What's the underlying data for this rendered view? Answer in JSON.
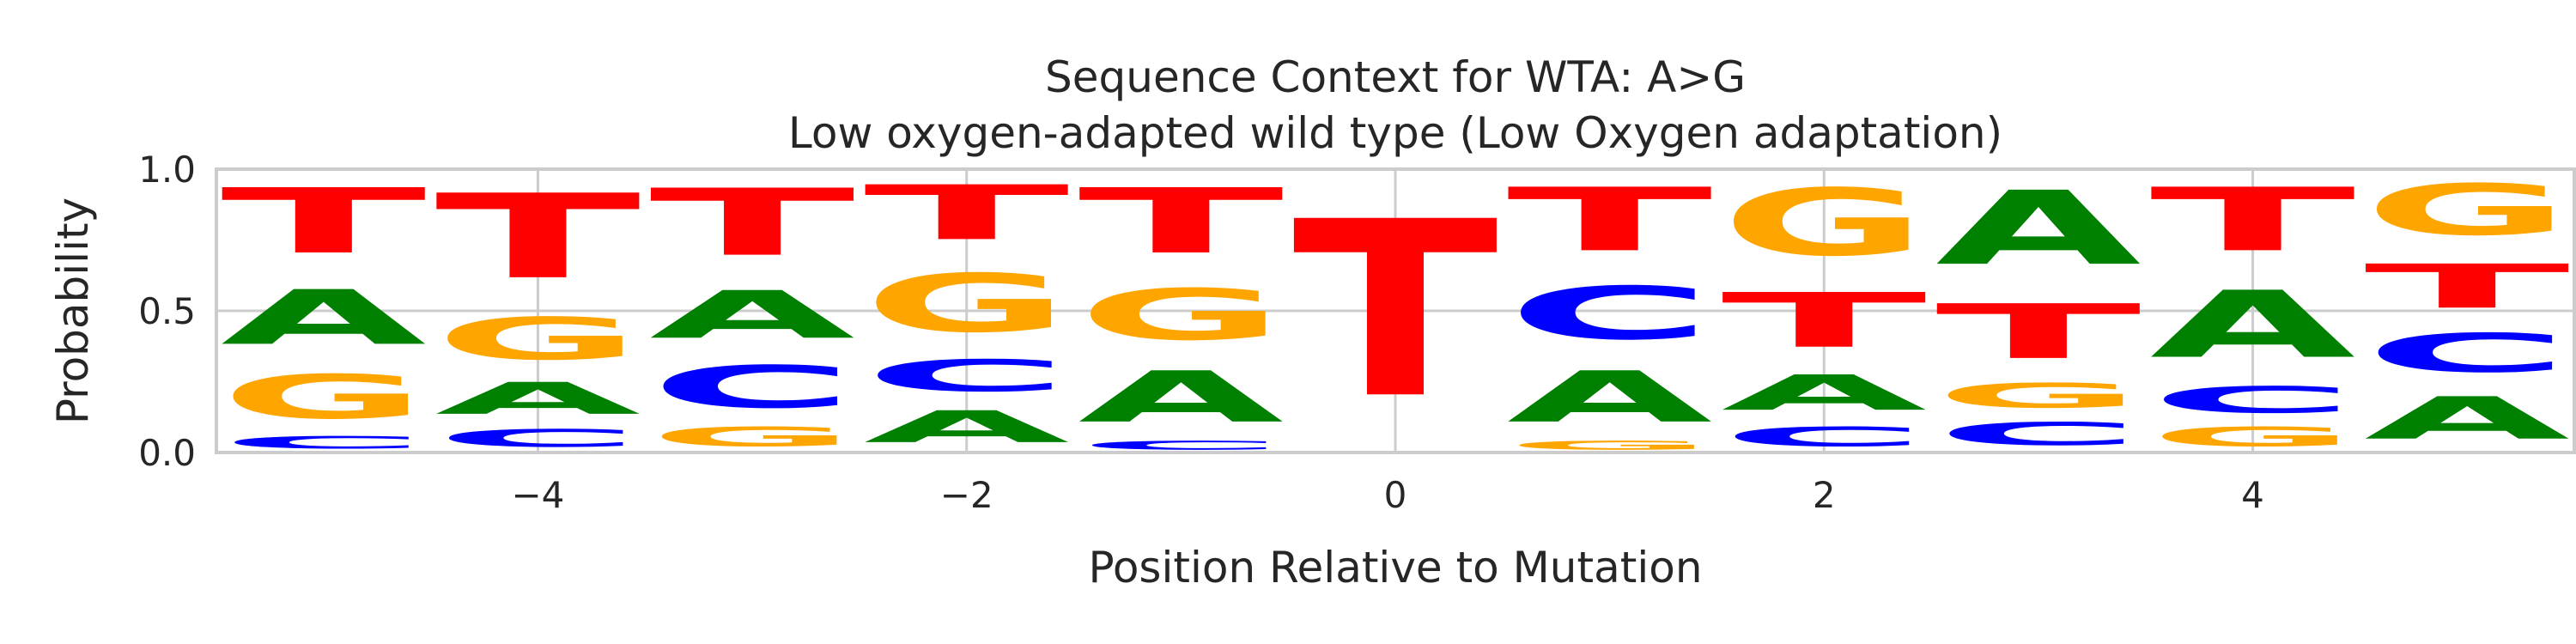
{
  "chart_data": {
    "type": "sequence-logo",
    "title": "Sequence Context for WTA: A>G",
    "subtitle": "Low oxygen-adapted wild type (Low Oxygen adaptation)",
    "xlabel": "Position Relative to Mutation",
    "ylabel": "Probability",
    "xlim": [
      -5.5,
      5.5
    ],
    "ylim": [
      0,
      1
    ],
    "xticks": [
      -4,
      -2,
      0,
      2,
      4
    ],
    "xtick_labels": [
      "−4",
      "−2",
      "0",
      "2",
      "4"
    ],
    "yticks": [
      0,
      0.5,
      1
    ],
    "ytick_labels": [
      "0.0",
      "0.5",
      "1.0"
    ],
    "grid": true,
    "colors": {
      "A": "#008000",
      "C": "#0000ff",
      "G": "#ffa500",
      "T": "#ff0000"
    },
    "positions": [
      {
        "pos": -5,
        "stack": [
          {
            "base": "C",
            "p": 0.07
          },
          {
            "base": "G",
            "p": 0.25
          },
          {
            "base": "A",
            "p": 0.31
          },
          {
            "base": "T",
            "p": 0.37
          }
        ]
      },
      {
        "pos": -4,
        "stack": [
          {
            "base": "C",
            "p": 0.1
          },
          {
            "base": "A",
            "p": 0.18
          },
          {
            "base": "G",
            "p": 0.24
          },
          {
            "base": "T",
            "p": 0.48
          }
        ]
      },
      {
        "pos": -3,
        "stack": [
          {
            "base": "G",
            "p": 0.11
          },
          {
            "base": "C",
            "p": 0.24
          },
          {
            "base": "A",
            "p": 0.27
          },
          {
            "base": "T",
            "p": 0.38
          }
        ]
      },
      {
        "pos": -2,
        "stack": [
          {
            "base": "A",
            "p": 0.18
          },
          {
            "base": "C",
            "p": 0.18
          },
          {
            "base": "G",
            "p": 0.33
          },
          {
            "base": "T",
            "p": 0.31
          }
        ]
      },
      {
        "pos": -1,
        "stack": [
          {
            "base": "C",
            "p": 0.05
          },
          {
            "base": "A",
            "p": 0.29
          },
          {
            "base": "G",
            "p": 0.29
          },
          {
            "base": "T",
            "p": 0.37
          }
        ]
      },
      {
        "pos": 0,
        "stack": [
          {
            "base": "T",
            "p": 1.0
          }
        ]
      },
      {
        "pos": 1,
        "stack": [
          {
            "base": "G",
            "p": 0.05
          },
          {
            "base": "A",
            "p": 0.29
          },
          {
            "base": "C",
            "p": 0.3
          },
          {
            "base": "T",
            "p": 0.36
          }
        ]
      },
      {
        "pos": 2,
        "stack": [
          {
            "base": "C",
            "p": 0.11
          },
          {
            "base": "A",
            "p": 0.2
          },
          {
            "base": "T",
            "p": 0.31
          },
          {
            "base": "G",
            "p": 0.38
          }
        ]
      },
      {
        "pos": 3,
        "stack": [
          {
            "base": "C",
            "p": 0.13
          },
          {
            "base": "G",
            "p": 0.14
          },
          {
            "base": "T",
            "p": 0.31
          },
          {
            "base": "A",
            "p": 0.42
          }
        ]
      },
      {
        "pos": 4,
        "stack": [
          {
            "base": "G",
            "p": 0.11
          },
          {
            "base": "C",
            "p": 0.15
          },
          {
            "base": "A",
            "p": 0.38
          },
          {
            "base": "T",
            "p": 0.36
          }
        ]
      },
      {
        "pos": 5,
        "stack": [
          {
            "base": "A",
            "p": 0.24
          },
          {
            "base": "C",
            "p": 0.22
          },
          {
            "base": "T",
            "p": 0.25
          },
          {
            "base": "G",
            "p": 0.29
          }
        ]
      }
    ]
  }
}
